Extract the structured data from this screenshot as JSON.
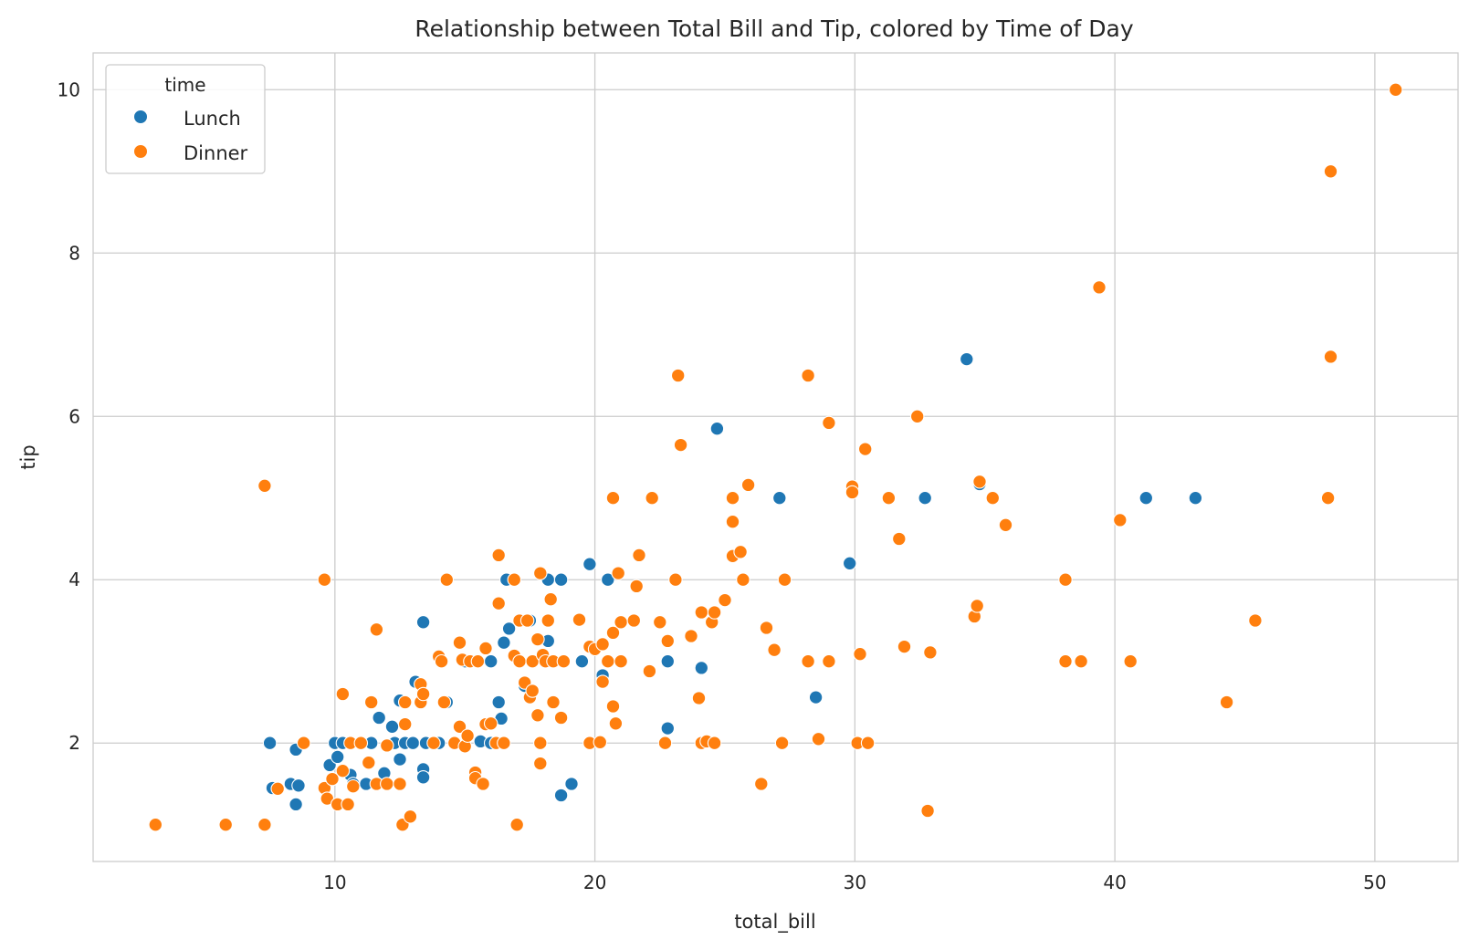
{
  "chart_data": {
    "type": "scatter",
    "title": "Relationship between Total Bill and Tip, colored by Time of Day",
    "xlabel": "total_bill",
    "ylabel": "tip",
    "xlim": [
      0.7,
      53.2
    ],
    "ylim": [
      0.55,
      10.45
    ],
    "xticks": [
      10,
      20,
      30,
      40,
      50
    ],
    "yticks": [
      2,
      4,
      6,
      8,
      10
    ],
    "grid": true,
    "legend": {
      "title": "time",
      "placement": "top-left"
    },
    "series": [
      {
        "name": "Lunch",
        "color": "#1f77b4",
        "points": [
          [
            7.5,
            2.0
          ],
          [
            7.6,
            1.45
          ],
          [
            8.3,
            1.5
          ],
          [
            8.5,
            1.92
          ],
          [
            8.5,
            1.25
          ],
          [
            8.6,
            1.48
          ],
          [
            9.8,
            1.73
          ],
          [
            10.0,
            2.0
          ],
          [
            10.1,
            1.83
          ],
          [
            10.3,
            2.0
          ],
          [
            10.6,
            1.61
          ],
          [
            10.7,
            1.5
          ],
          [
            11.2,
            1.5
          ],
          [
            11.4,
            2.0
          ],
          [
            11.7,
            2.31
          ],
          [
            11.9,
            1.63
          ],
          [
            12.2,
            2.2
          ],
          [
            12.3,
            2.0
          ],
          [
            12.5,
            1.8
          ],
          [
            12.5,
            2.52
          ],
          [
            12.7,
            2.0
          ],
          [
            13.0,
            2.0
          ],
          [
            13.1,
            2.75
          ],
          [
            13.4,
            1.68
          ],
          [
            13.4,
            1.58
          ],
          [
            13.4,
            3.48
          ],
          [
            13.5,
            2.0
          ],
          [
            14.0,
            2.0
          ],
          [
            14.3,
            2.5
          ],
          [
            15.0,
            3.0
          ],
          [
            15.5,
            3.0
          ],
          [
            15.6,
            2.02
          ],
          [
            16.0,
            3.0
          ],
          [
            16.0,
            2.0
          ],
          [
            16.3,
            2.5
          ],
          [
            16.4,
            2.3
          ],
          [
            16.5,
            3.23
          ],
          [
            16.6,
            4.0
          ],
          [
            16.7,
            3.4
          ],
          [
            17.3,
            2.7
          ],
          [
            17.5,
            3.5
          ],
          [
            18.2,
            4.0
          ],
          [
            18.2,
            3.25
          ],
          [
            18.7,
            4.0
          ],
          [
            18.7,
            1.36
          ],
          [
            19.1,
            1.5
          ],
          [
            19.5,
            3.0
          ],
          [
            19.8,
            4.19
          ],
          [
            20.3,
            2.83
          ],
          [
            20.5,
            4.0
          ],
          [
            21.0,
            3.0
          ],
          [
            22.8,
            3.0
          ],
          [
            22.8,
            2.18
          ],
          [
            24.1,
            2.92
          ],
          [
            24.7,
            5.85
          ],
          [
            27.1,
            5.0
          ],
          [
            28.5,
            2.56
          ],
          [
            29.8,
            4.2
          ],
          [
            32.7,
            5.0
          ],
          [
            34.3,
            6.7
          ],
          [
            34.8,
            5.17
          ],
          [
            41.2,
            5.0
          ],
          [
            43.1,
            5.0
          ]
        ]
      },
      {
        "name": "Dinner",
        "color": "#ff7f0e",
        "points": [
          [
            3.1,
            1.0
          ],
          [
            5.8,
            1.0
          ],
          [
            7.3,
            1.0
          ],
          [
            7.3,
            5.15
          ],
          [
            7.8,
            1.44
          ],
          [
            8.8,
            2.0
          ],
          [
            9.6,
            1.45
          ],
          [
            9.6,
            4.0
          ],
          [
            9.7,
            1.32
          ],
          [
            9.9,
            1.56
          ],
          [
            10.1,
            1.25
          ],
          [
            10.3,
            2.6
          ],
          [
            10.3,
            1.66
          ],
          [
            10.5,
            1.25
          ],
          [
            10.6,
            2.0
          ],
          [
            10.7,
            1.47
          ],
          [
            11.0,
            2.0
          ],
          [
            11.3,
            1.76
          ],
          [
            11.4,
            2.5
          ],
          [
            11.6,
            3.39
          ],
          [
            11.6,
            1.5
          ],
          [
            12.0,
            1.5
          ],
          [
            12.0,
            1.97
          ],
          [
            12.5,
            1.5
          ],
          [
            12.6,
            1.0
          ],
          [
            12.7,
            2.5
          ],
          [
            12.7,
            2.23
          ],
          [
            12.9,
            1.1
          ],
          [
            13.3,
            2.72
          ],
          [
            13.3,
            2.5
          ],
          [
            13.4,
            2.6
          ],
          [
            13.8,
            2.0
          ],
          [
            14.0,
            3.06
          ],
          [
            14.1,
            3.0
          ],
          [
            14.2,
            2.5
          ],
          [
            14.3,
            4.0
          ],
          [
            14.6,
            2.0
          ],
          [
            14.8,
            2.2
          ],
          [
            14.8,
            3.23
          ],
          [
            14.9,
            3.02
          ],
          [
            15.0,
            1.96
          ],
          [
            15.1,
            2.09
          ],
          [
            15.2,
            3.0
          ],
          [
            15.4,
            1.64
          ],
          [
            15.4,
            1.57
          ],
          [
            15.5,
            3.0
          ],
          [
            15.7,
            1.5
          ],
          [
            15.8,
            2.23
          ],
          [
            15.8,
            3.16
          ],
          [
            16.0,
            2.24
          ],
          [
            16.2,
            2.0
          ],
          [
            16.3,
            4.3
          ],
          [
            16.3,
            3.71
          ],
          [
            16.5,
            2.0
          ],
          [
            16.9,
            4.0
          ],
          [
            16.9,
            3.07
          ],
          [
            17.0,
            1.0
          ],
          [
            17.1,
            3.5
          ],
          [
            17.1,
            3.0
          ],
          [
            17.3,
            2.74
          ],
          [
            17.4,
            3.5
          ],
          [
            17.5,
            2.56
          ],
          [
            17.6,
            3.0
          ],
          [
            17.6,
            2.64
          ],
          [
            17.8,
            3.27
          ],
          [
            17.8,
            2.34
          ],
          [
            17.9,
            1.75
          ],
          [
            17.9,
            2.0
          ],
          [
            17.9,
            4.08
          ],
          [
            18.0,
            3.08
          ],
          [
            18.1,
            3.0
          ],
          [
            18.2,
            3.5
          ],
          [
            18.3,
            3.76
          ],
          [
            18.4,
            2.5
          ],
          [
            18.4,
            3.0
          ],
          [
            18.7,
            2.31
          ],
          [
            18.8,
            3.0
          ],
          [
            19.4,
            3.51
          ],
          [
            19.8,
            2.0
          ],
          [
            19.8,
            3.18
          ],
          [
            20.0,
            3.15
          ],
          [
            20.2,
            2.01
          ],
          [
            20.3,
            2.75
          ],
          [
            20.3,
            3.21
          ],
          [
            20.5,
            3.0
          ],
          [
            20.7,
            5.0
          ],
          [
            20.7,
            2.45
          ],
          [
            20.7,
            3.35
          ],
          [
            20.8,
            2.24
          ],
          [
            20.9,
            4.08
          ],
          [
            21.0,
            3.48
          ],
          [
            21.0,
            3.0
          ],
          [
            21.5,
            3.5
          ],
          [
            21.6,
            3.92
          ],
          [
            21.7,
            4.3
          ],
          [
            22.1,
            2.88
          ],
          [
            22.2,
            5.0
          ],
          [
            22.5,
            3.48
          ],
          [
            22.7,
            2.0
          ],
          [
            22.8,
            3.25
          ],
          [
            23.1,
            4.0
          ],
          [
            23.2,
            6.5
          ],
          [
            23.3,
            5.65
          ],
          [
            23.7,
            3.31
          ],
          [
            24.0,
            2.55
          ],
          [
            24.1,
            3.6
          ],
          [
            24.1,
            2.0
          ],
          [
            24.3,
            2.02
          ],
          [
            24.5,
            3.48
          ],
          [
            24.6,
            3.6
          ],
          [
            24.6,
            2.0
          ],
          [
            25.0,
            3.75
          ],
          [
            25.3,
            4.29
          ],
          [
            25.3,
            5.0
          ],
          [
            25.3,
            4.71
          ],
          [
            25.6,
            4.34
          ],
          [
            25.7,
            4.0
          ],
          [
            25.9,
            5.16
          ],
          [
            26.4,
            1.5
          ],
          [
            26.6,
            3.41
          ],
          [
            26.9,
            3.14
          ],
          [
            27.2,
            2.0
          ],
          [
            27.3,
            4.0
          ],
          [
            28.2,
            6.5
          ],
          [
            28.2,
            3.0
          ],
          [
            28.6,
            2.05
          ],
          [
            29.0,
            5.92
          ],
          [
            29.0,
            3.0
          ],
          [
            29.9,
            5.14
          ],
          [
            29.9,
            5.07
          ],
          [
            30.1,
            2.0
          ],
          [
            30.2,
            3.09
          ],
          [
            30.4,
            5.6
          ],
          [
            30.5,
            2.0
          ],
          [
            31.3,
            5.0
          ],
          [
            31.7,
            4.5
          ],
          [
            31.9,
            3.18
          ],
          [
            32.4,
            6.0
          ],
          [
            32.8,
            1.17
          ],
          [
            32.9,
            3.11
          ],
          [
            34.6,
            3.55
          ],
          [
            34.7,
            3.68
          ],
          [
            34.8,
            5.2
          ],
          [
            35.3,
            5.0
          ],
          [
            35.8,
            4.67
          ],
          [
            38.1,
            4.0
          ],
          [
            38.1,
            3.0
          ],
          [
            38.7,
            3.0
          ],
          [
            39.4,
            7.58
          ],
          [
            40.2,
            4.73
          ],
          [
            40.6,
            3.0
          ],
          [
            44.3,
            2.5
          ],
          [
            45.4,
            3.5
          ],
          [
            48.2,
            5.0
          ],
          [
            48.3,
            6.73
          ],
          [
            48.3,
            9.0
          ],
          [
            50.8,
            10.0
          ]
        ]
      }
    ]
  }
}
